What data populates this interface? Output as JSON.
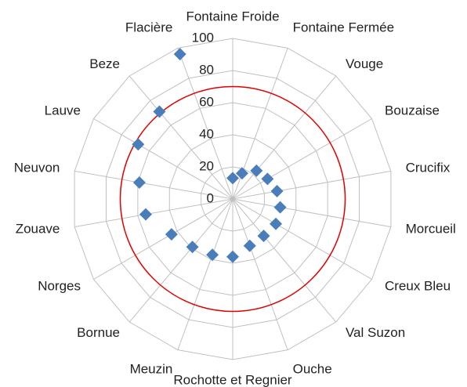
{
  "chart_data": {
    "type": "radar",
    "categories": [
      "Fontaine Froide",
      "Fontaine Fermée",
      "Vouge",
      "Bouzaise",
      "Crucifix",
      "Morcueil",
      "Creux Bleu",
      "Val Suzon",
      "Ouche",
      "Rochotte et Regnier",
      "Meuzin",
      "Bornue",
      "Norges",
      "Zouave",
      "Neuvon",
      "Lauve",
      "Beze",
      "Flacière"
    ],
    "series": [
      {
        "color": "#4a7ebb",
        "values": [
          13,
          17,
          23,
          25,
          28,
          30,
          31,
          30,
          31,
          36,
          37,
          39,
          44,
          55,
          59,
          68,
          71,
          96
        ]
      }
    ],
    "reference": {
      "value": 70,
      "color": "#e00000"
    },
    "ylim": [
      0,
      100
    ],
    "yticks": [
      0,
      20,
      40,
      60,
      80,
      100
    ],
    "grid": true
  }
}
